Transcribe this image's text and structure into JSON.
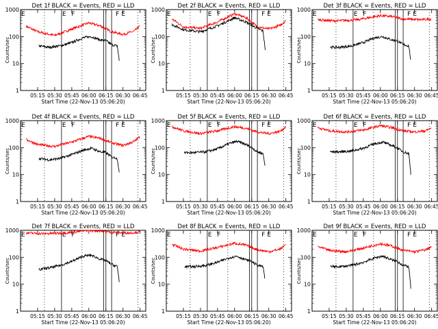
{
  "colors": {
    "events": "#000000",
    "lld": "#ff0000",
    "axis": "#000000"
  },
  "chart_data": [
    {
      "type": "line",
      "title": "Det 1f BLACK = Events, RED = LLD",
      "xlabel": "Start Time (22-Nov-13 05:06:20)",
      "ylabel": "Counts/sec",
      "yscale": "log",
      "ylim": [
        1,
        1000
      ],
      "yticks": [
        "1",
        "10",
        "100",
        "1000"
      ],
      "x_ticks": [
        "05:15",
        "05:30",
        "05:45",
        "06:00",
        "06:15",
        "06:30",
        "06:45"
      ],
      "xlim_minutes_after_05_00": [
        0,
        110
      ],
      "flags": [
        "E",
        "F",
        "F",
        "E"
      ],
      "flag_times": [
        "05:36",
        "05:44",
        "06:23",
        "06:28"
      ],
      "lines_solid": [
        "05:36",
        "06:13",
        "06:15",
        "06:20"
      ],
      "lines_dotted": [
        "05:21",
        "05:54",
        "06:43"
      ],
      "series": [
        {
          "name": "",
          "color": "red",
          "x": [
            "05:05",
            "05:15",
            "05:30",
            "05:45",
            "06:00",
            "06:10",
            "06:20",
            "06:30",
            "06:40",
            "06:45"
          ],
          "values": [
            240,
            150,
            110,
            190,
            320,
            250,
            150,
            120,
            160,
            250
          ]
        },
        {
          "name": "",
          "color": "black",
          "x": [
            "05:16",
            "05:25",
            "05:35",
            "05:45",
            "05:55",
            "06:02",
            "06:10",
            "06:15",
            "06:20",
            "06:25",
            "06:27"
          ],
          "values": [
            45,
            40,
            45,
            60,
            90,
            100,
            75,
            70,
            50,
            45,
            10
          ]
        }
      ]
    },
    {
      "type": "line",
      "title": "Det 2f BLACK = Events, RED = LLD",
      "xlabel": "Start Time (22-Nov-13 05:06:20)",
      "ylabel": "Counts/sec",
      "yscale": "log",
      "ylim": [
        1,
        1000
      ],
      "yticks": [
        "1",
        "10",
        "100",
        "1000"
      ],
      "x_ticks": [
        "05:15",
        "05:30",
        "05:45",
        "06:00",
        "06:15",
        "06:30",
        "06:45"
      ],
      "xlim_minutes_after_05_00": [
        0,
        110
      ],
      "flags": [
        "E",
        "F",
        "F",
        "E"
      ],
      "flag_times": [
        "05:36",
        "05:44",
        "06:23",
        "06:28"
      ],
      "lines_solid": [
        "05:36",
        "06:13",
        "06:15",
        "06:20"
      ],
      "lines_dotted": [
        "05:21",
        "05:54",
        "06:43"
      ],
      "series": [
        {
          "name": "",
          "color": "red",
          "x": [
            "05:05",
            "05:15",
            "05:30",
            "05:45",
            "06:00",
            "06:10",
            "06:20",
            "06:30",
            "06:40",
            "06:45"
          ],
          "values": [
            450,
            230,
            200,
            350,
            700,
            500,
            230,
            190,
            260,
            400
          ]
        },
        {
          "name": "",
          "color": "black",
          "x": [
            "05:05",
            "05:15",
            "05:30",
            "05:45",
            "06:00",
            "06:10",
            "06:20",
            "06:25",
            "06:27"
          ],
          "values": [
            280,
            180,
            150,
            250,
            500,
            350,
            200,
            160,
            30
          ]
        }
      ]
    },
    {
      "type": "line",
      "title": "Det 3f BLACK = Events, RED = LLD",
      "xlabel": "Start Time (22-Nov-13 05:06:20)",
      "ylabel": "Counts/sec",
      "yscale": "log",
      "ylim": [
        1,
        1000
      ],
      "yticks": [
        "1",
        "10",
        "100",
        "1000"
      ],
      "x_ticks": [
        "05:15",
        "05:30",
        "05:45",
        "06:00",
        "06:15",
        "06:30",
        "06:45"
      ],
      "xlim_minutes_after_05_00": [
        0,
        110
      ],
      "flags": [
        "E",
        "F",
        "F",
        "E"
      ],
      "flag_times": [
        "05:36",
        "05:44",
        "06:23",
        "06:28"
      ],
      "lines_solid": [
        "05:36",
        "06:13",
        "06:15",
        "06:20"
      ],
      "lines_dotted": [
        "05:21",
        "05:54",
        "06:43"
      ],
      "series": [
        {
          "name": "",
          "color": "red",
          "x": [
            "05:05",
            "05:20",
            "05:40",
            "06:00",
            "06:10",
            "06:20",
            "06:35",
            "06:45"
          ],
          "values": [
            420,
            380,
            420,
            600,
            550,
            450,
            420,
            450
          ]
        },
        {
          "name": "",
          "color": "black",
          "x": [
            "05:16",
            "05:25",
            "05:35",
            "05:45",
            "05:55",
            "06:02",
            "06:10",
            "06:15",
            "06:20",
            "06:25",
            "06:27"
          ],
          "values": [
            40,
            40,
            45,
            60,
            90,
            100,
            75,
            70,
            50,
            45,
            10
          ]
        }
      ]
    },
    {
      "type": "line",
      "title": "Det 4f BLACK = Events, RED = LLD",
      "xlabel": "Start Time (22-Nov-13 05:06:20)",
      "ylabel": "Counts/sec",
      "yscale": "log",
      "ylim": [
        1,
        1000
      ],
      "yticks": [
        "1",
        "10",
        "100",
        "1000"
      ],
      "x_ticks": [
        "05:15",
        "05:30",
        "05:45",
        "06:00",
        "06:15",
        "06:30",
        "06:45"
      ],
      "xlim_minutes_after_05_00": [
        0,
        110
      ],
      "flags": [
        "E",
        "F",
        "F",
        "E"
      ],
      "flag_times": [
        "05:36",
        "05:44",
        "06:23",
        "06:28"
      ],
      "lines_solid": [
        "05:36",
        "06:13",
        "06:15",
        "06:20"
      ],
      "lines_dotted": [
        "05:21",
        "05:54",
        "06:43"
      ],
      "series": [
        {
          "name": "",
          "color": "red",
          "x": [
            "05:05",
            "05:15",
            "05:30",
            "05:45",
            "06:00",
            "06:10",
            "06:20",
            "06:30",
            "06:40",
            "06:45"
          ],
          "values": [
            200,
            130,
            110,
            160,
            260,
            220,
            150,
            120,
            170,
            260
          ]
        },
        {
          "name": "",
          "color": "black",
          "x": [
            "05:16",
            "05:25",
            "05:35",
            "05:45",
            "05:55",
            "06:02",
            "06:10",
            "06:15",
            "06:20",
            "06:25",
            "06:27"
          ],
          "values": [
            40,
            35,
            40,
            55,
            80,
            95,
            70,
            65,
            45,
            40,
            9
          ]
        }
      ]
    },
    {
      "type": "line",
      "title": "Det 5f BLACK = Events, RED = LLD",
      "xlabel": "Start Time (22-Nov-13 05:06:20)",
      "ylabel": "Counts/sec",
      "yscale": "log",
      "ylim": [
        1,
        1000
      ],
      "yticks": [
        "1",
        "10",
        "100",
        "1000"
      ],
      "x_ticks": [
        "05:15",
        "05:30",
        "05:45",
        "06:00",
        "06:15",
        "06:30",
        "06:45"
      ],
      "xlim_minutes_after_05_00": [
        0,
        110
      ],
      "flags": [
        "E",
        "F",
        "F",
        "E"
      ],
      "flag_times": [
        "05:36",
        "05:44",
        "06:23",
        "06:28"
      ],
      "lines_solid": [
        "05:36",
        "06:13",
        "06:15",
        "06:20"
      ],
      "lines_dotted": [
        "05:21",
        "05:54",
        "06:43"
      ],
      "series": [
        {
          "name": "",
          "color": "red",
          "x": [
            "05:05",
            "05:15",
            "05:30",
            "05:45",
            "06:00",
            "06:10",
            "06:20",
            "06:30",
            "06:40",
            "06:45"
          ],
          "values": [
            600,
            420,
            330,
            420,
            600,
            520,
            380,
            330,
            400,
            600
          ]
        },
        {
          "name": "",
          "color": "black",
          "x": [
            "05:16",
            "05:25",
            "05:35",
            "05:45",
            "05:55",
            "06:02",
            "06:10",
            "06:15",
            "06:20",
            "06:25",
            "06:27"
          ],
          "values": [
            65,
            65,
            70,
            90,
            140,
            170,
            130,
            100,
            70,
            60,
            18
          ]
        }
      ]
    },
    {
      "type": "line",
      "title": "Det 6f BLACK = Events, RED = LLD",
      "xlabel": "Start Time (22-Nov-13 05:06:20)",
      "ylabel": "Counts/sec",
      "yscale": "log",
      "ylim": [
        1,
        1000
      ],
      "yticks": [
        "1",
        "10",
        "100",
        "1000"
      ],
      "x_ticks": [
        "05:15",
        "05:30",
        "05:45",
        "06:00",
        "06:15",
        "06:30",
        "06:45"
      ],
      "xlim_minutes_after_05_00": [
        0,
        110
      ],
      "flags": [
        "E",
        "F",
        "F",
        "E"
      ],
      "flag_times": [
        "05:36",
        "05:44",
        "06:23",
        "06:28"
      ],
      "lines_solid": [
        "05:36",
        "06:13",
        "06:15",
        "06:20"
      ],
      "lines_dotted": [
        "05:21",
        "05:54",
        "06:43"
      ],
      "series": [
        {
          "name": "",
          "color": "red",
          "x": [
            "05:05",
            "05:15",
            "05:30",
            "05:45",
            "06:00",
            "06:10",
            "06:20",
            "06:30",
            "06:40",
            "06:45"
          ],
          "values": [
            550,
            420,
            380,
            450,
            650,
            550,
            420,
            380,
            420,
            550
          ]
        },
        {
          "name": "",
          "color": "black",
          "x": [
            "05:16",
            "05:25",
            "05:35",
            "05:45",
            "05:55",
            "06:02",
            "06:10",
            "06:15",
            "06:20",
            "06:25",
            "06:27"
          ],
          "values": [
            70,
            70,
            75,
            95,
            140,
            160,
            120,
            95,
            70,
            60,
            8
          ]
        }
      ]
    },
    {
      "type": "line",
      "title": "Det 7f BLACK = Events, RED = LLD",
      "xlabel": "Start Time (22-Nov-13 05:06:20)",
      "ylabel": "Counts/sec",
      "yscale": "log",
      "ylim": [
        1,
        1000
      ],
      "yticks": [
        "1",
        "10",
        "100",
        "1000"
      ],
      "x_ticks": [
        "05:15",
        "05:30",
        "05:45",
        "06:00",
        "06:15",
        "06:30",
        "06:45"
      ],
      "xlim_minutes_after_05_00": [
        0,
        110
      ],
      "flags": [
        "E",
        "F",
        "F",
        "E"
      ],
      "flag_times": [
        "05:36",
        "05:44",
        "06:23",
        "06:28"
      ],
      "lines_solid": [
        "05:36",
        "06:13",
        "06:15",
        "06:20"
      ],
      "lines_dotted": [
        "05:21",
        "05:54",
        "06:43"
      ],
      "series": [
        {
          "name": "",
          "color": "red",
          "x": [
            "05:05",
            "05:20",
            "05:40",
            "06:00",
            "06:10",
            "06:20",
            "06:35",
            "06:45"
          ],
          "values": [
            800,
            750,
            800,
            1000,
            950,
            850,
            800,
            850
          ]
        },
        {
          "name": "",
          "color": "black",
          "x": [
            "05:16",
            "05:25",
            "05:35",
            "05:45",
            "05:55",
            "06:02",
            "06:10",
            "06:15",
            "06:20",
            "06:25",
            "06:27"
          ],
          "values": [
            35,
            40,
            50,
            70,
            110,
            120,
            85,
            75,
            55,
            45,
            10
          ]
        }
      ]
    },
    {
      "type": "line",
      "title": "Det 8f BLACK = Events, RED = LLD",
      "xlabel": "Start Time (22-Nov-13 05:06:20)",
      "ylabel": "Counts/sec",
      "yscale": "log",
      "ylim": [
        1,
        1000
      ],
      "yticks": [
        "1",
        "10",
        "100",
        "1000"
      ],
      "x_ticks": [
        "05:15",
        "05:30",
        "05:45",
        "06:00",
        "06:15",
        "06:30",
        "06:45"
      ],
      "xlim_minutes_after_05_00": [
        0,
        110
      ],
      "flags": [
        "E",
        "F",
        "F",
        "E"
      ],
      "flag_times": [
        "05:36",
        "05:44",
        "06:23",
        "06:28"
      ],
      "lines_solid": [
        "05:36",
        "06:13",
        "06:15",
        "06:20"
      ],
      "lines_dotted": [
        "05:21",
        "05:54",
        "06:43"
      ],
      "series": [
        {
          "name": "",
          "color": "red",
          "x": [
            "05:05",
            "05:15",
            "05:30",
            "05:45",
            "06:00",
            "06:10",
            "06:20",
            "06:30",
            "06:40",
            "06:45"
          ],
          "values": [
            300,
            200,
            170,
            230,
            330,
            280,
            190,
            160,
            200,
            300
          ]
        },
        {
          "name": "",
          "color": "black",
          "x": [
            "05:16",
            "05:25",
            "05:35",
            "05:45",
            "05:55",
            "06:02",
            "06:10",
            "06:15",
            "06:20",
            "06:25",
            "06:27"
          ],
          "values": [
            45,
            45,
            50,
            65,
            95,
            110,
            80,
            70,
            50,
            45,
            12
          ]
        }
      ]
    },
    {
      "type": "line",
      "title": "Det 9f BLACK = Events, RED = LLD",
      "xlabel": "Start Time (22-Nov-13 05:06:20)",
      "ylabel": "Counts/sec",
      "yscale": "log",
      "ylim": [
        1,
        1000
      ],
      "yticks": [
        "1",
        "10",
        "100",
        "1000"
      ],
      "x_ticks": [
        "05:15",
        "05:30",
        "05:45",
        "06:00",
        "06:15",
        "06:30",
        "06:45"
      ],
      "xlim_minutes_after_05_00": [
        0,
        110
      ],
      "flags": [
        "E",
        "F",
        "F",
        "E"
      ],
      "flag_times": [
        "05:36",
        "05:44",
        "06:23",
        "06:28"
      ],
      "lines_solid": [
        "05:36",
        "06:13",
        "06:15",
        "06:20"
      ],
      "lines_dotted": [
        "05:21",
        "05:54",
        "06:43"
      ],
      "series": [
        {
          "name": "",
          "color": "red",
          "x": [
            "05:05",
            "05:15",
            "05:30",
            "05:45",
            "06:00",
            "06:10",
            "06:20",
            "06:30",
            "06:40",
            "06:45"
          ],
          "values": [
            250,
            180,
            160,
            220,
            320,
            260,
            180,
            160,
            190,
            250
          ]
        },
        {
          "name": "",
          "color": "black",
          "x": [
            "05:16",
            "05:25",
            "05:35",
            "05:45",
            "05:55",
            "06:02",
            "06:10",
            "06:15",
            "06:20",
            "06:25",
            "06:27"
          ],
          "values": [
            45,
            45,
            50,
            65,
            95,
            110,
            80,
            70,
            50,
            45,
            5
          ]
        }
      ]
    }
  ]
}
